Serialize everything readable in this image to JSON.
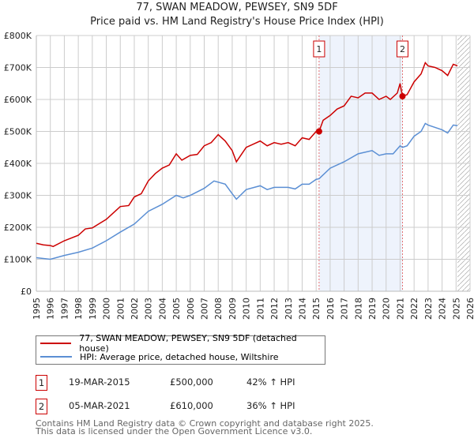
{
  "chart_data": {
    "type": "line",
    "title": "77, SWAN MEADOW, PEWSEY, SN9 5DF",
    "subtitle": "Price paid vs. HM Land Registry's House Price Index (HPI)",
    "xlim": [
      1995,
      2026
    ],
    "ylim": [
      0,
      800000
    ],
    "y_ticks": [
      {
        "v": 0,
        "l": "£0"
      },
      {
        "v": 100000,
        "l": "£100K"
      },
      {
        "v": 200000,
        "l": "£200K"
      },
      {
        "v": 300000,
        "l": "£300K"
      },
      {
        "v": 400000,
        "l": "£400K"
      },
      {
        "v": 500000,
        "l": "£500K"
      },
      {
        "v": 600000,
        "l": "£600K"
      },
      {
        "v": 700000,
        "l": "£700K"
      },
      {
        "v": 800000,
        "l": "£800K"
      }
    ],
    "x_ticks": [
      "1995",
      "1996",
      "1997",
      "1998",
      "1999",
      "2000",
      "2001",
      "2002",
      "2003",
      "2004",
      "2005",
      "2006",
      "2007",
      "2008",
      "2009",
      "2010",
      "2011",
      "2012",
      "2013",
      "2014",
      "2015",
      "2016",
      "2017",
      "2018",
      "2019",
      "2020",
      "2021",
      "2022",
      "2023",
      "2024",
      "2025",
      "2026"
    ],
    "grid": true,
    "shaded_range": [
      2015.21,
      2021.17
    ],
    "forecast_hatch_from": 2025.1,
    "series": [
      {
        "name": "77, SWAN MEADOW, PEWSEY, SN9 5DF (detached house)",
        "color": "#cc0000",
        "x": [
          1995,
          1995.5,
          1996,
          1996.2,
          1997,
          1998,
          1998.5,
          1999,
          2000,
          2000.5,
          2001,
          2001.6,
          2002,
          2002.5,
          2003,
          2003.5,
          2004,
          2004.5,
          2005,
          2005.4,
          2006,
          2006.5,
          2007,
          2007.5,
          2008,
          2008.5,
          2009,
          2009.3,
          2010,
          2010.5,
          2011,
          2011.5,
          2012,
          2012.5,
          2013,
          2013.5,
          2014,
          2014.5,
          2015,
          2015.21,
          2015.5,
          2016,
          2016.5,
          2017,
          2017.5,
          2018,
          2018.5,
          2019,
          2019.5,
          2020,
          2020.3,
          2020.8,
          2021,
          2021.17,
          2021.5,
          2022,
          2022.5,
          2022.8,
          2023,
          2023.5,
          2024,
          2024.4,
          2024.8,
          2025.1
        ],
        "y": [
          150000,
          145000,
          143000,
          140000,
          158000,
          175000,
          195000,
          198000,
          225000,
          245000,
          265000,
          268000,
          295000,
          305000,
          345000,
          368000,
          385000,
          395000,
          430000,
          410000,
          425000,
          428000,
          455000,
          465000,
          490000,
          470000,
          440000,
          405000,
          450000,
          460000,
          470000,
          455000,
          465000,
          460000,
          465000,
          455000,
          480000,
          475000,
          500000,
          500000,
          535000,
          550000,
          570000,
          580000,
          610000,
          605000,
          620000,
          620000,
          600000,
          610000,
          600000,
          620000,
          650000,
          610000,
          615000,
          655000,
          680000,
          715000,
          705000,
          700000,
          690000,
          675000,
          710000,
          705000
        ]
      },
      {
        "name": "HPI: Average price, detached house, Wiltshire",
        "color": "#5b8fd4",
        "x": [
          1995,
          1996,
          1997,
          1998,
          1999,
          2000,
          2001,
          2002,
          2003,
          2004,
          2005,
          2005.5,
          2006,
          2007,
          2007.7,
          2008.5,
          2009,
          2009.3,
          2010,
          2011,
          2011.5,
          2012,
          2013,
          2013.5,
          2014,
          2014.5,
          2015,
          2015.21,
          2016,
          2017,
          2018,
          2019,
          2019.5,
          2020,
          2020.5,
          2021,
          2021.17,
          2021.5,
          2022,
          2022.5,
          2022.8,
          2023,
          2024,
          2024.4,
          2024.8,
          2025.1
        ],
        "y": [
          105000,
          100000,
          112000,
          122000,
          135000,
          158000,
          185000,
          210000,
          250000,
          272000,
          300000,
          292000,
          300000,
          322000,
          345000,
          335000,
          305000,
          288000,
          318000,
          330000,
          318000,
          325000,
          325000,
          320000,
          335000,
          335000,
          350000,
          352000,
          385000,
          405000,
          430000,
          440000,
          425000,
          430000,
          430000,
          455000,
          450000,
          455000,
          485000,
          500000,
          525000,
          520000,
          505000,
          495000,
          520000,
          518000
        ]
      }
    ],
    "annotations": [
      {
        "label": "1",
        "x": 2015.21,
        "y": 500000
      },
      {
        "label": "2",
        "x": 2021.17,
        "y": 610000
      }
    ]
  },
  "legend": {
    "items": [
      "77, SWAN MEADOW, PEWSEY, SN9 5DF (detached house)",
      "HPI: Average price, detached house, Wiltshire"
    ]
  },
  "transactions": [
    {
      "num": "1",
      "date": "19-MAR-2015",
      "price": "£500,000",
      "hpi": "42% ↑ HPI"
    },
    {
      "num": "2",
      "date": "05-MAR-2021",
      "price": "£610,000",
      "hpi": "36% ↑ HPI"
    }
  ],
  "footer": [
    "Contains HM Land Registry data © Crown copyright and database right 2025.",
    "This data is licensed under the Open Government Licence v3.0."
  ]
}
